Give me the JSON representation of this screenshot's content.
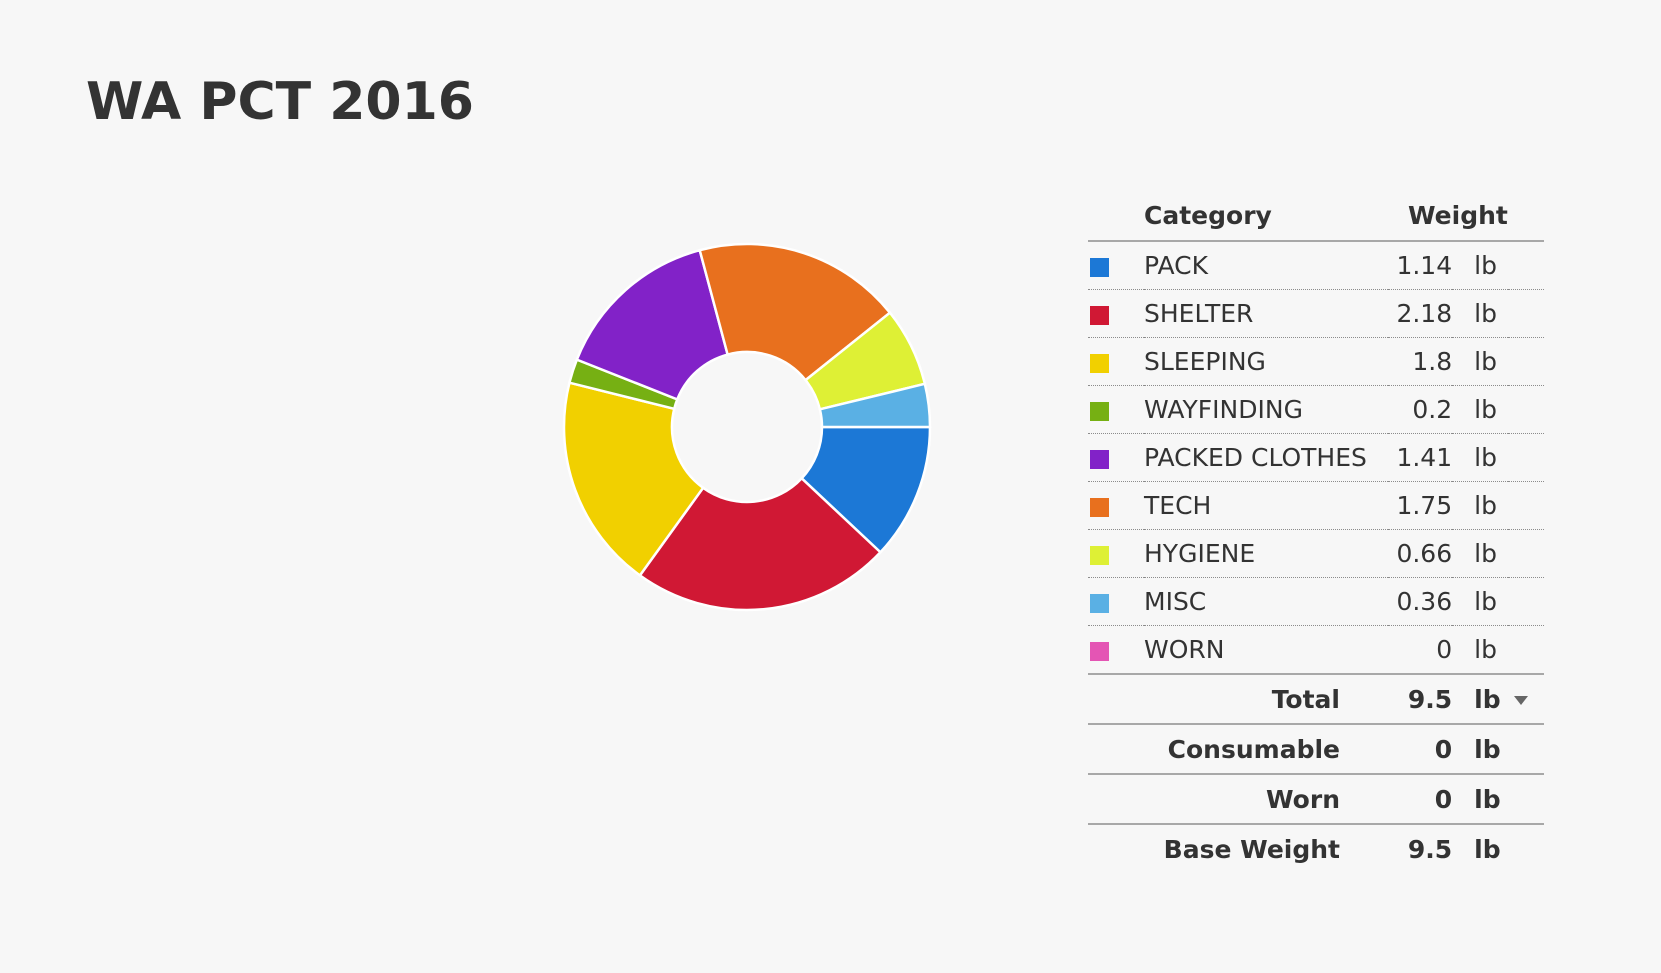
{
  "title": "WA PCT 2016",
  "table": {
    "header_category": "Category",
    "header_weight": "Weight"
  },
  "summary": {
    "total_label": "Total",
    "total_value": "9.5",
    "total_unit": "lb",
    "consumable_label": "Consumable",
    "consumable_value": "0",
    "consumable_unit": "lb",
    "worn_label": "Worn",
    "worn_value": "0",
    "worn_unit": "lb",
    "base_label": "Base Weight",
    "base_value": "9.5",
    "base_unit": "lb"
  },
  "chart_data": {
    "type": "pie",
    "variant": "donut",
    "unit": "lb",
    "start_angle_deg": 90,
    "direction": "clockwise",
    "categories": [
      "PACK",
      "SHELTER",
      "SLEEPING",
      "WAYFINDING",
      "PACKED CLOTHES",
      "TECH",
      "HYGIENE",
      "MISC",
      "WORN"
    ],
    "values": [
      1.14,
      2.18,
      1.8,
      0.2,
      1.41,
      1.75,
      0.66,
      0.36,
      0
    ],
    "value_labels": [
      "1.14",
      "2.18",
      "1.8",
      "0.2",
      "1.41",
      "1.75",
      "0.66",
      "0.36",
      "0"
    ],
    "colors": [
      "#1c78d6",
      "#d01834",
      "#f1d000",
      "#76b013",
      "#8222c8",
      "#e8701e",
      "#def035",
      "#5ab0e4",
      "#e455b4"
    ]
  }
}
